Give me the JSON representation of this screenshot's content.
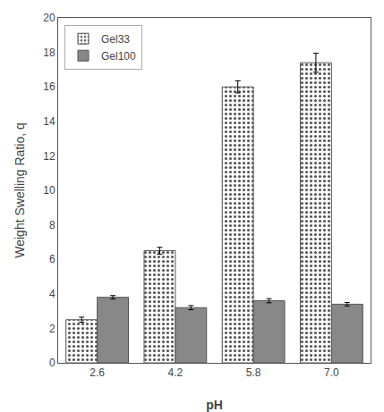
{
  "chart_data": {
    "type": "bar",
    "categories": [
      "2.6",
      "4.2",
      "5.8",
      "7.0"
    ],
    "series": [
      {
        "name": "Gel33",
        "color": "#ffffff",
        "values": [
          2.5,
          6.5,
          16.0,
          17.4
        ],
        "errors": [
          0.15,
          0.2,
          0.35,
          0.55
        ]
      },
      {
        "name": "Gel100",
        "color": "#888888",
        "values": [
          3.8,
          3.2,
          3.6,
          3.4
        ],
        "errors": [
          0.1,
          0.12,
          0.12,
          0.1
        ]
      }
    ],
    "xlabel": "pH",
    "ylabel": "Weight Swelling Ratio, q",
    "ylim": [
      0,
      20
    ],
    "yticks": [
      0,
      2,
      4,
      6,
      8,
      10,
      12,
      14,
      16,
      18,
      20
    ],
    "grid": false,
    "legend": "upper left"
  }
}
